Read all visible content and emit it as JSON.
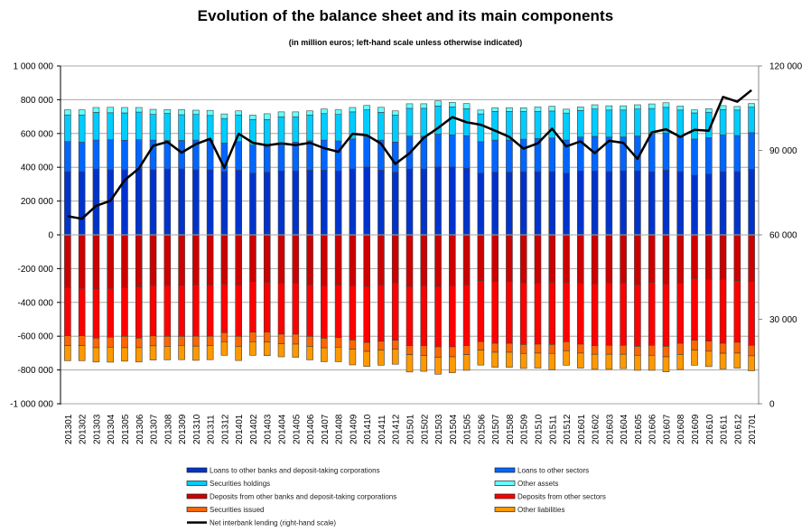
{
  "chart_data": {
    "type": "bar",
    "stacked": true,
    "title": "Evolution of the balance sheet and its main components",
    "subtitle": "(in million euros; left-hand scale unless otherwise indicated)",
    "xlabel": "",
    "ylabel": "",
    "ylim": [
      -1000000,
      1000000
    ],
    "y2lim": [
      0,
      120000
    ],
    "grid": true,
    "legend_position": "bottom",
    "y_ticks": [
      "1 000 000",
      "800 000",
      "600 000",
      "400 000",
      "200 000",
      "0",
      "-200 000",
      "-400 000",
      "-600 000",
      "-800 000",
      "-1 000 000"
    ],
    "y_tick_values": [
      1000000,
      800000,
      600000,
      400000,
      200000,
      0,
      -200000,
      -400000,
      -600000,
      -800000,
      -1000000
    ],
    "y2_ticks": [
      "120 000",
      "90 000",
      "60 000",
      "30 000",
      "0"
    ],
    "y2_tick_values": [
      120000,
      90000,
      60000,
      30000,
      0
    ],
    "categories": [
      "201301",
      "201302",
      "201303",
      "201304",
      "201305",
      "201306",
      "201307",
      "201308",
      "201309",
      "201310",
      "201311",
      "201312",
      "201401",
      "201402",
      "201403",
      "201404",
      "201405",
      "201406",
      "201407",
      "201408",
      "201409",
      "201410",
      "201411",
      "201412",
      "201501",
      "201502",
      "201503",
      "201504",
      "201505",
      "201506",
      "201507",
      "201508",
      "201509",
      "201510",
      "201511",
      "201512",
      "201601",
      "201602",
      "201603",
      "201604",
      "201605",
      "201606",
      "201607",
      "201608",
      "201609",
      "201610",
      "201611",
      "201612",
      "201701"
    ],
    "series": [
      {
        "name": "Loans to other banks and deposit-taking corporations",
        "color": "#0033CC",
        "axis": "left",
        "values": [
          374000,
          374000,
          390000,
          385000,
          385000,
          390000,
          385000,
          390000,
          390000,
          385000,
          385000,
          374000,
          383000,
          365000,
          371000,
          378000,
          378000,
          383000,
          383000,
          378000,
          390000,
          402000,
          383000,
          371000,
          390000,
          390000,
          402000,
          402000,
          395000,
          365000,
          371000,
          371000,
          374000,
          374000,
          374000,
          365000,
          378000,
          378000,
          374000,
          378000,
          378000,
          374000,
          383000,
          374000,
          353000,
          360000,
          374000,
          374000,
          388000
        ]
      },
      {
        "name": "Loans to other sectors",
        "color": "#0066FF",
        "axis": "left",
        "values": [
          178000,
          174000,
          171000,
          178000,
          175000,
          173000,
          176000,
          169000,
          169000,
          176000,
          176000,
          169000,
          169000,
          166000,
          152000,
          160000,
          171000,
          174000,
          178000,
          178000,
          178000,
          178000,
          178000,
          178000,
          194000,
          194000,
          194000,
          190000,
          192000,
          187000,
          190000,
          190000,
          192000,
          196000,
          199000,
          196000,
          201000,
          205000,
          205000,
          201000,
          207000,
          222000,
          219000,
          205000,
          214000,
          215000,
          217000,
          214000,
          217000
        ]
      },
      {
        "name": "Securities holdings",
        "color": "#00CCFF",
        "axis": "left",
        "values": [
          158000,
          162000,
          164000,
          160000,
          162000,
          164000,
          152000,
          160000,
          152000,
          152000,
          146000,
          146000,
          157000,
          151000,
          160000,
          160000,
          149000,
          152000,
          157000,
          157000,
          160000,
          160000,
          164000,
          160000,
          165000,
          165000,
          167000,
          165000,
          160000,
          164000,
          170000,
          170000,
          164000,
          160000,
          160000,
          160000,
          157000,
          162000,
          160000,
          160000,
          160000,
          152000,
          153000,
          160000,
          155000,
          151000,
          151000,
          151000,
          151000
        ]
      },
      {
        "name": "Other assets",
        "color": "#66FFFF",
        "axis": "left",
        "values": [
          30000,
          30000,
          29000,
          32000,
          32000,
          27000,
          30000,
          23000,
          30000,
          25000,
          30000,
          27000,
          25000,
          27000,
          34000,
          30000,
          30000,
          25000,
          27000,
          27000,
          26000,
          26000,
          30000,
          25000,
          27000,
          27000,
          30000,
          27000,
          30000,
          23000,
          22000,
          22000,
          22000,
          27000,
          28000,
          23000,
          21000,
          25000,
          25000,
          25000,
          25000,
          27000,
          27000,
          23000,
          18000,
          21000,
          23000,
          21000,
          21000
        ]
      },
      {
        "name": "Deposits from other banks and deposit-taking corporations",
        "color": "#CC0000",
        "axis": "left",
        "values": [
          -312000,
          -316000,
          -321000,
          -316000,
          -312000,
          -308000,
          -299000,
          -299000,
          -299000,
          -296000,
          -296000,
          -290000,
          -296000,
          -276000,
          -280000,
          -285000,
          -285000,
          -296000,
          -301000,
          -296000,
          -301000,
          -306000,
          -296000,
          -285000,
          -306000,
          -301000,
          -306000,
          -301000,
          -296000,
          -271000,
          -276000,
          -276000,
          -285000,
          -285000,
          -280000,
          -280000,
          -285000,
          -290000,
          -285000,
          -285000,
          -294000,
          -280000,
          -290000,
          -285000,
          -258000,
          -264000,
          -264000,
          -271000,
          -276000
        ]
      },
      {
        "name": "Deposits from other sectors",
        "color": "#FF0000",
        "axis": "left",
        "values": [
          -285000,
          -281000,
          -290000,
          -290000,
          -289000,
          -303000,
          -299000,
          -302000,
          -302000,
          -304000,
          -304000,
          -289000,
          -305000,
          -300000,
          -296000,
          -303000,
          -303000,
          -305000,
          -311000,
          -312000,
          -321000,
          -331000,
          -334000,
          -339000,
          -350000,
          -355000,
          -357000,
          -362000,
          -360000,
          -361000,
          -366000,
          -366000,
          -364000,
          -362000,
          -369000,
          -353000,
          -362000,
          -366000,
          -369000,
          -369000,
          -366000,
          -374000,
          -370000,
          -357000,
          -366000,
          -365000,
          -378000,
          -365000,
          -378000
        ]
      },
      {
        "name": "Securities issued",
        "color": "#FF6600",
        "axis": "left",
        "values": [
          -59000,
          -59000,
          -57000,
          -59000,
          -67000,
          -57000,
          -59000,
          -59000,
          -53000,
          -59000,
          -55000,
          -54000,
          -59000,
          -57000,
          -59000,
          -57000,
          -59000,
          -59000,
          -57000,
          -57000,
          -55000,
          -53000,
          -53000,
          -53000,
          -53000,
          -59000,
          -62000,
          -59000,
          -53000,
          -50000,
          -53000,
          -53000,
          -53000,
          -53000,
          -53000,
          -53000,
          -53000,
          -51000,
          -53000,
          -53000,
          -53000,
          -59000,
          -62000,
          -66000,
          -59000,
          -60000,
          -59000,
          -64000,
          -62000
        ]
      },
      {
        "name": "Other liabilities",
        "color": "#FF9900",
        "axis": "left",
        "values": [
          -89000,
          -89000,
          -85000,
          -89000,
          -80000,
          -85000,
          -84000,
          -80000,
          -85000,
          -84000,
          -84000,
          -80000,
          -84000,
          -80000,
          -80000,
          -77000,
          -78000,
          -80000,
          -82000,
          -86000,
          -93000,
          -89000,
          -89000,
          -89000,
          -103000,
          -93000,
          -100000,
          -94000,
          -93000,
          -89000,
          -89000,
          -89000,
          -89000,
          -89000,
          -96000,
          -86000,
          -89000,
          -89000,
          -89000,
          -85000,
          -89000,
          -89000,
          -89000,
          -89000,
          -89000,
          -91000,
          -93000,
          -89000,
          -89000
        ]
      },
      {
        "name": "Net interbank lending (right-hand scale)",
        "color": "#000000",
        "type": "line",
        "axis": "right",
        "values": [
          66600,
          65700,
          70300,
          72100,
          79400,
          83600,
          91600,
          93000,
          89200,
          92200,
          94100,
          83800,
          95900,
          92700,
          91800,
          92500,
          91900,
          92700,
          90800,
          89500,
          95900,
          95400,
          92400,
          85200,
          89000,
          94500,
          98000,
          101800,
          100000,
          99100,
          97000,
          94800,
          90600,
          92500,
          97700,
          91400,
          93200,
          89000,
          93400,
          92700,
          87000,
          96400,
          97500,
          94800,
          97300,
          97000,
          109000,
          107300,
          111400
        ]
      }
    ]
  },
  "legend": {
    "items": [
      {
        "label": "Loans to other banks and deposit-taking corporations",
        "color": "#0033CC",
        "kind": "box"
      },
      {
        "label": "Loans to other sectors",
        "color": "#0066FF",
        "kind": "box"
      },
      {
        "label": "Securities holdings",
        "color": "#00CCFF",
        "kind": "box"
      },
      {
        "label": "Other assets",
        "color": "#66FFFF",
        "kind": "box"
      },
      {
        "label": "Deposits from other banks and deposit-taking corporations",
        "color": "#CC0000",
        "kind": "box"
      },
      {
        "label": "Deposits from other sectors",
        "color": "#FF0000",
        "kind": "box"
      },
      {
        "label": "Securities issued",
        "color": "#FF6600",
        "kind": "box"
      },
      {
        "label": "Other liabilities",
        "color": "#FF9900",
        "kind": "box"
      },
      {
        "label": "Net interbank lending (right-hand scale)",
        "color": "#000000",
        "kind": "line"
      }
    ]
  }
}
